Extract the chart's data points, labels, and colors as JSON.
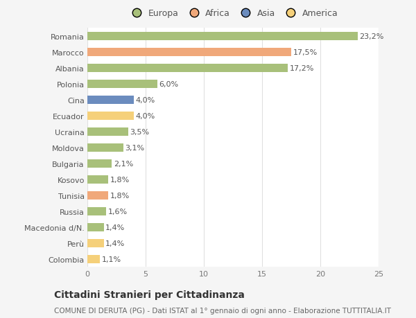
{
  "title": "Cittadini Stranieri per Cittadinanza",
  "subtitle": "COMUNE DI DERUTA (PG) - Dati ISTAT al 1° gennaio di ogni anno - Elaborazione TUTTITALIA.IT",
  "countries": [
    "Romania",
    "Marocco",
    "Albania",
    "Polonia",
    "Cina",
    "Ecuador",
    "Ucraina",
    "Moldova",
    "Bulgaria",
    "Kosovo",
    "Tunisia",
    "Russia",
    "Macedonia d/N.",
    "Perù",
    "Colombia"
  ],
  "values": [
    23.2,
    17.5,
    17.2,
    6.0,
    4.0,
    4.0,
    3.5,
    3.1,
    2.1,
    1.8,
    1.8,
    1.6,
    1.4,
    1.4,
    1.1
  ],
  "continents": [
    "Europa",
    "Africa",
    "Europa",
    "Europa",
    "Asia",
    "America",
    "Europa",
    "Europa",
    "Europa",
    "Europa",
    "Africa",
    "Europa",
    "Europa",
    "America",
    "America"
  ],
  "continent_colors": {
    "Europa": "#a8c07a",
    "Africa": "#f0a87a",
    "Asia": "#6b8cbe",
    "America": "#f5d07a"
  },
  "legend_order": [
    "Europa",
    "Africa",
    "Asia",
    "America"
  ],
  "xlim": [
    0,
    25
  ],
  "xticks": [
    0,
    5,
    10,
    15,
    20,
    25
  ],
  "plot_bg_color": "#ffffff",
  "fig_bg_color": "#f5f5f5",
  "bar_height": 0.55,
  "label_fontsize": 8,
  "title_fontsize": 10,
  "subtitle_fontsize": 7.5,
  "tick_fontsize": 8,
  "legend_fontsize": 9,
  "grid_color": "#e0e0e0"
}
